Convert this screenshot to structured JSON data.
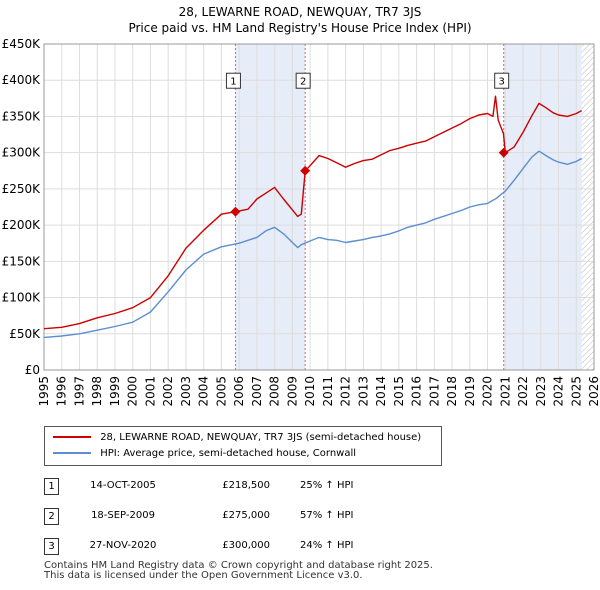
{
  "title_line1": "28, LEWARNE ROAD, NEWQUAY, TR7 3JS",
  "title_line2": "Price paid vs. HM Land Registry's House Price Index (HPI)",
  "chart_data": {
    "type": "line",
    "title": "28, LEWARNE ROAD, NEWQUAY, TR7 3JS - Price paid vs. HM Land Registry's House Price Index (HPI)",
    "xlabel": "",
    "ylabel": "",
    "xlim": [
      1995,
      2026
    ],
    "ylim": [
      0,
      450000
    ],
    "x_ticks": [
      1995,
      1996,
      1997,
      1998,
      1999,
      2000,
      2001,
      2002,
      2003,
      2004,
      2005,
      2006,
      2007,
      2008,
      2009,
      2010,
      2011,
      2012,
      2013,
      2014,
      2015,
      2016,
      2017,
      2018,
      2019,
      2020,
      2021,
      2022,
      2023,
      2024,
      2025,
      2026
    ],
    "y_ticks": [
      0,
      50000,
      100000,
      150000,
      200000,
      250000,
      300000,
      350000,
      400000,
      450000
    ],
    "y_tick_labels": [
      "£0",
      "£50K",
      "£100K",
      "£150K",
      "£200K",
      "£250K",
      "£300K",
      "£350K",
      "£400K",
      "£450K"
    ],
    "grid": true,
    "colors": {
      "property": "#cc0000",
      "hpi": "#5b8fd0",
      "shade": "#e6ecf8",
      "marker_line": "#e06666"
    },
    "series": [
      {
        "name": "28, LEWARNE ROAD, NEWQUAY, TR7 3JS (semi-detached house)",
        "x": [
          1995,
          1996,
          1997,
          1998,
          1999,
          2000,
          2001,
          2002,
          2003,
          2004,
          2005,
          2005.79,
          2006.5,
          2007,
          2007.5,
          2008,
          2008.5,
          2009.3,
          2009.5,
          2009.72,
          2010,
          2010.5,
          2011,
          2011.5,
          2012,
          2012.5,
          2013,
          2013.5,
          2014,
          2014.5,
          2015,
          2015.5,
          2016,
          2016.5,
          2017,
          2017.5,
          2018,
          2018.5,
          2019,
          2019.5,
          2020,
          2020.3,
          2020.45,
          2020.6,
          2020.9,
          2021,
          2021.5,
          2022,
          2022.5,
          2022.9,
          2023.3,
          2023.7,
          2024,
          2024.5,
          2025,
          2025.3
        ],
        "values": [
          57000,
          59000,
          64000,
          72000,
          78000,
          86000,
          100000,
          130000,
          168000,
          193000,
          215000,
          218500,
          222000,
          236000,
          244000,
          252000,
          236000,
          212000,
          215000,
          275000,
          282000,
          296000,
          292000,
          286000,
          280000,
          285000,
          289000,
          291000,
          297000,
          303000,
          306000,
          310000,
          313000,
          316000,
          322000,
          328000,
          334000,
          340000,
          347000,
          352000,
          354000,
          350000,
          378000,
          345000,
          326000,
          300000,
          308000,
          328000,
          351000,
          368000,
          362000,
          355000,
          352000,
          350000,
          354000,
          358000
        ]
      },
      {
        "name": "HPI: Average price, semi-detached house, Cornwall",
        "x": [
          1995,
          1996,
          1997,
          1998,
          1999,
          2000,
          2001,
          2002,
          2003,
          2004,
          2005,
          2006,
          2007,
          2007.5,
          2008,
          2008.5,
          2009.3,
          2009.5,
          2010,
          2010.5,
          2011,
          2011.5,
          2012,
          2012.5,
          2013,
          2013.5,
          2014,
          2014.5,
          2015,
          2015.5,
          2016,
          2016.5,
          2017,
          2017.5,
          2018,
          2018.5,
          2019,
          2019.5,
          2020,
          2020.5,
          2021,
          2021.5,
          2022,
          2022.5,
          2022.9,
          2023.3,
          2023.7,
          2024,
          2024.5,
          2025,
          2025.3
        ],
        "values": [
          45000,
          47000,
          50000,
          55000,
          60000,
          66000,
          80000,
          108000,
          138000,
          160000,
          170000,
          175000,
          183000,
          192000,
          197000,
          188000,
          169000,
          173000,
          178000,
          183000,
          180000,
          179000,
          176000,
          178000,
          180000,
          183000,
          185000,
          188000,
          192000,
          197000,
          200000,
          203000,
          208000,
          212000,
          216000,
          220000,
          225000,
          228000,
          230000,
          237000,
          247000,
          262000,
          278000,
          294000,
          302000,
          296000,
          290000,
          287000,
          284000,
          288000,
          292000
        ]
      }
    ],
    "sales": [
      {
        "label": "1",
        "x": 2005.79,
        "value": 218500
      },
      {
        "label": "2",
        "x": 2009.72,
        "value": 275000
      },
      {
        "label": "3",
        "x": 2020.91,
        "value": 300000
      }
    ],
    "shaded_ranges": [
      [
        2005.79,
        2009.72
      ],
      [
        2020.91,
        2025.3
      ]
    ],
    "hatched_from": 2025.3
  },
  "legend": {
    "property_label": "28, LEWARNE ROAD, NEWQUAY, TR7 3JS (semi-detached house)",
    "hpi_label": "HPI: Average price, semi-detached house, Cornwall"
  },
  "sales_table": [
    {
      "num": "1",
      "date": "14-OCT-2005",
      "price": "£218,500",
      "hpi": "25% ↑ HPI"
    },
    {
      "num": "2",
      "date": "18-SEP-2009",
      "price": "£275,000",
      "hpi": "57% ↑ HPI"
    },
    {
      "num": "3",
      "date": "27-NOV-2020",
      "price": "£300,000",
      "hpi": "24% ↑ HPI"
    }
  ],
  "footer_line1": "Contains HM Land Registry data © Crown copyright and database right 2025.",
  "footer_line2": "This data is licensed under the Open Government Licence v3.0."
}
